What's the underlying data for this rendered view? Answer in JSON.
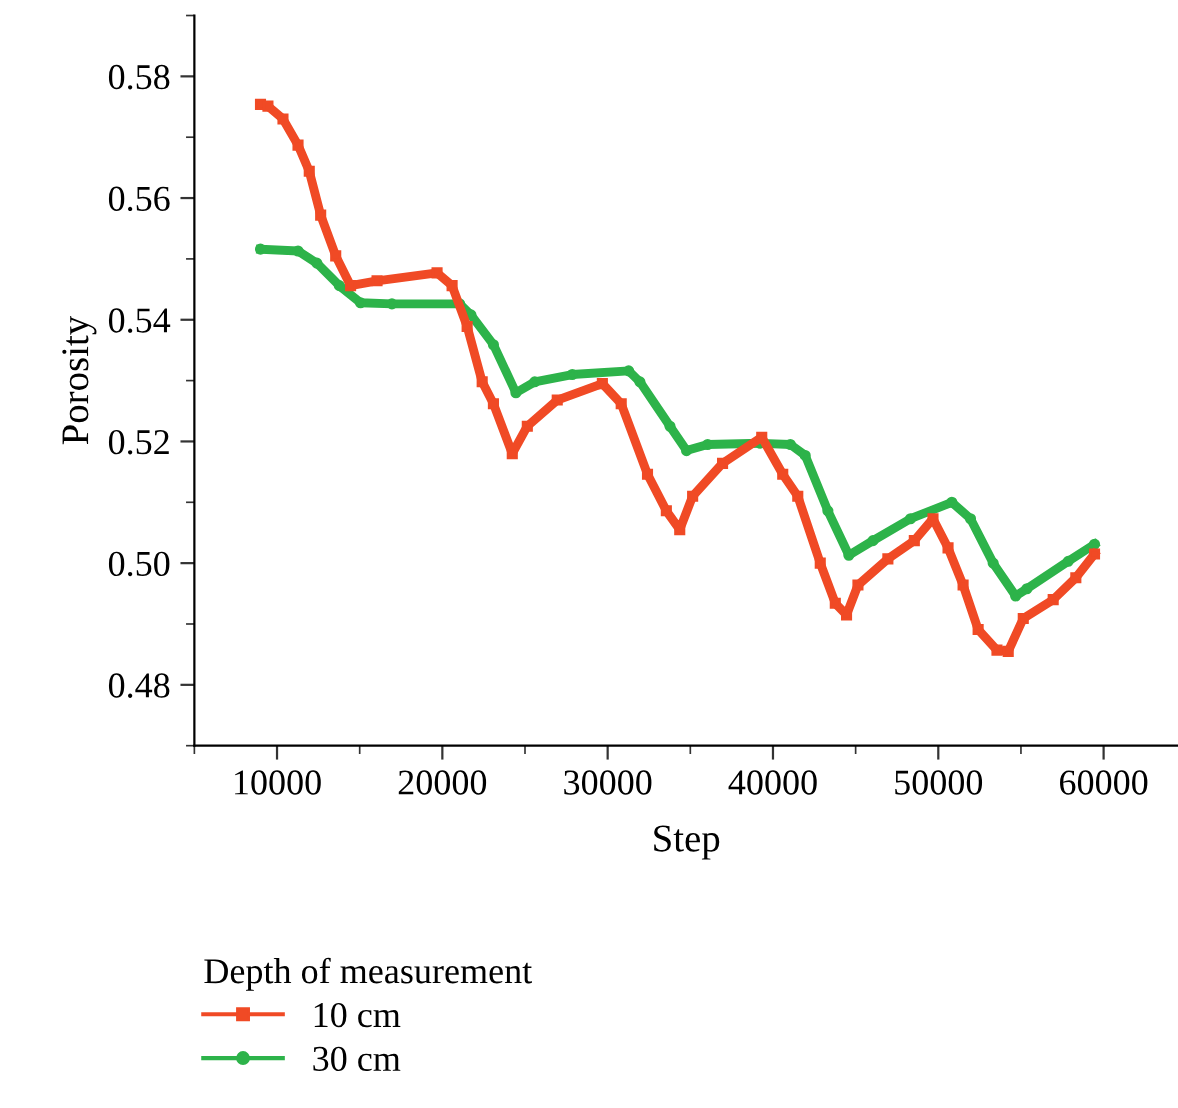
{
  "chart_data": {
    "type": "line",
    "xlabel": "Step",
    "ylabel": "Porosity",
    "legend_title": "Depth of measurement",
    "legend": "bottom",
    "grid": false,
    "xlim": [
      5000,
      64500
    ],
    "xticks": [
      10000,
      20000,
      30000,
      40000,
      50000,
      60000
    ],
    "ylim": [
      0.47,
      0.59
    ],
    "yticks": [
      {
        "value": 0.48,
        "label": "0.48"
      },
      {
        "value": 0.5,
        "label": "0.50"
      },
      {
        "value": 0.52,
        "label": "0.52"
      },
      {
        "value": 0.54,
        "label": "0.54"
      },
      {
        "value": 0.56,
        "label": "0.56"
      },
      {
        "value": 0.58,
        "label": "0.58"
      }
    ],
    "series": [
      {
        "name": "10 cm",
        "color": "#f04a25",
        "marker": "square",
        "x": [
          9000,
          9450,
          10360,
          11270,
          11950,
          12640,
          13550,
          14450,
          16050,
          19680,
          20590,
          21500,
          22410,
          23090,
          24230,
          25140,
          26950,
          29680,
          30820,
          32410,
          33550,
          34360,
          35140,
          36950,
          39320,
          40590,
          41500,
          42860,
          43770,
          44450,
          45140,
          46950,
          48550,
          49680,
          50590,
          51500,
          52410,
          53550,
          54230,
          55140,
          56950,
          58320,
          59450
        ],
        "values": [
          0.5754,
          0.5751,
          0.573,
          0.5687,
          0.5644,
          0.5572,
          0.5505,
          0.5456,
          0.5464,
          0.5477,
          0.5456,
          0.5389,
          0.5298,
          0.5262,
          0.518,
          0.5225,
          0.5268,
          0.5295,
          0.5262,
          0.5146,
          0.5086,
          0.5055,
          0.511,
          0.5164,
          0.5207,
          0.5146,
          0.511,
          0.5,
          0.4934,
          0.4915,
          0.4964,
          0.5007,
          0.5037,
          0.5073,
          0.5025,
          0.4964,
          0.4891,
          0.4857,
          0.4855,
          0.4909,
          0.494,
          0.4976,
          0.5015
        ]
      },
      {
        "name": "30 cm",
        "color": "#2db34a",
        "marker": "circle",
        "x": [
          9000,
          11270,
          12410,
          13770,
          15050,
          16950,
          21050,
          21730,
          23090,
          24450,
          25590,
          27860,
          31270,
          31950,
          33770,
          34770,
          36050,
          39230,
          41050,
          41950,
          43320,
          44590,
          46050,
          48320,
          50820,
          51950,
          53320,
          54680,
          55360,
          57860,
          59450
        ],
        "values": [
          0.5516,
          0.5513,
          0.5493,
          0.5456,
          0.5428,
          0.5426,
          0.5426,
          0.5408,
          0.5359,
          0.528,
          0.5298,
          0.531,
          0.5316,
          0.5298,
          0.5225,
          0.5185,
          0.5195,
          0.5197,
          0.5195,
          0.5177,
          0.5086,
          0.5013,
          0.5037,
          0.5073,
          0.51,
          0.5073,
          0.5,
          0.4946,
          0.4958,
          0.5003,
          0.5031
        ]
      }
    ]
  }
}
